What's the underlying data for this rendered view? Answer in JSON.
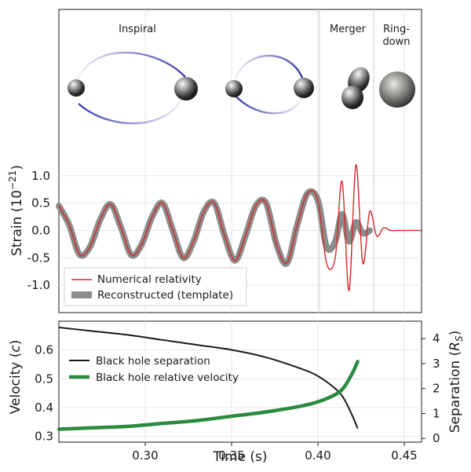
{
  "figure": {
    "phase_labels": {
      "inspiral": "Inspiral",
      "merger": "Merger",
      "ringdown_line1": "Ring-",
      "ringdown_line2": "down"
    },
    "xlabel": "Time (s)"
  },
  "colors": {
    "nr_line": "#d62728",
    "template_band": "#8c8c8c",
    "separation_line": "#1a1a1a",
    "velocity_line": "#2a8a3e",
    "orbit": "#3a3aa8",
    "grid": "#e6e6e6"
  },
  "chart_data": [
    {
      "type": "line",
      "panel": "strain",
      "ylabel": "Strain (10^-21)",
      "ylabel_main": "Strain (10",
      "ylabel_exp": "−21",
      "ylabel_close": ")",
      "xlim": [
        0.25,
        0.46
      ],
      "ylim": [
        -1.5,
        1.6
      ],
      "yticks": [
        1.0,
        0.5,
        0.0,
        -0.5,
        -1.0
      ],
      "ytick_labels": [
        "1.0",
        "0.5",
        "0.0",
        "-0.5",
        "-1.0"
      ],
      "grid": true,
      "legend_position": "lower-left",
      "series": [
        {
          "name": "Numerical relativity",
          "style": "thin-line",
          "x": [
            0.25,
            0.256,
            0.262,
            0.268,
            0.274,
            0.28,
            0.286,
            0.292,
            0.298,
            0.304,
            0.31,
            0.316,
            0.322,
            0.328,
            0.334,
            0.34,
            0.346,
            0.352,
            0.358,
            0.364,
            0.37,
            0.376,
            0.382,
            0.388,
            0.394,
            0.4,
            0.405,
            0.41,
            0.414,
            0.418,
            0.422,
            0.426,
            0.43,
            0.434,
            0.438,
            0.442,
            0.446,
            0.45,
            0.455,
            0.46
          ],
          "y": [
            0.45,
            0.1,
            -0.44,
            -0.3,
            0.2,
            0.48,
            0.05,
            -0.45,
            -0.25,
            0.25,
            0.5,
            0.0,
            -0.5,
            -0.2,
            0.35,
            0.5,
            -0.1,
            -0.55,
            -0.1,
            0.45,
            0.5,
            -0.25,
            -0.6,
            0.1,
            0.68,
            0.55,
            -0.6,
            -0.5,
            0.9,
            -1.1,
            1.2,
            -0.6,
            0.35,
            -0.1,
            0.05,
            0.0,
            0.0,
            0.0,
            0.0,
            0.0
          ]
        },
        {
          "name": "Reconstructed (template)",
          "style": "thick-band",
          "x": [
            0.25,
            0.256,
            0.262,
            0.268,
            0.274,
            0.28,
            0.286,
            0.292,
            0.298,
            0.304,
            0.31,
            0.316,
            0.322,
            0.328,
            0.334,
            0.34,
            0.346,
            0.352,
            0.358,
            0.364,
            0.37,
            0.376,
            0.382,
            0.388,
            0.394,
            0.4,
            0.405,
            0.41,
            0.414,
            0.418,
            0.422,
            0.426,
            0.43
          ],
          "y": [
            0.45,
            0.1,
            -0.44,
            -0.3,
            0.2,
            0.48,
            0.05,
            -0.45,
            -0.25,
            0.25,
            0.5,
            0.0,
            -0.5,
            -0.2,
            0.35,
            0.5,
            -0.1,
            -0.55,
            -0.1,
            0.45,
            0.5,
            -0.25,
            -0.6,
            0.1,
            0.68,
            0.55,
            -0.3,
            -0.2,
            0.3,
            -0.2,
            0.15,
            -0.05,
            0.0
          ]
        }
      ]
    },
    {
      "type": "line",
      "panel": "velocity-separation",
      "xlim": [
        0.25,
        0.46
      ],
      "xticks": [
        0.3,
        0.35,
        0.4,
        0.45
      ],
      "xtick_labels": [
        "0.30",
        "0.35",
        "0.40",
        "0.45"
      ],
      "xlabel": "Time (s)",
      "y_left": {
        "label": "Velocity (c)",
        "label_main": "Velocity (",
        "label_var": "c",
        "label_close": ")",
        "lim": [
          0.28,
          0.7
        ],
        "ticks": [
          0.3,
          0.4,
          0.5,
          0.6
        ],
        "tick_labels": [
          "0.3",
          "0.4",
          "0.5",
          "0.6"
        ]
      },
      "y_right": {
        "label": "Separation (R_S)",
        "label_main": "Separation (",
        "label_var": "R",
        "label_sub": "S",
        "label_close": ")",
        "lim": [
          -0.15,
          4.7
        ],
        "ticks": [
          0,
          1,
          2,
          3,
          4
        ],
        "tick_labels": [
          "0",
          "1",
          "2",
          "3",
          "4"
        ]
      },
      "grid": true,
      "legend_position": "center-left",
      "series": [
        {
          "name": "Black hole separation",
          "axis": "right",
          "x": [
            0.25,
            0.27,
            0.29,
            0.31,
            0.33,
            0.35,
            0.37,
            0.39,
            0.4,
            0.41,
            0.415,
            0.42,
            0.423
          ],
          "y": [
            4.45,
            4.3,
            4.15,
            3.95,
            3.75,
            3.55,
            3.25,
            2.8,
            2.5,
            2.0,
            1.6,
            0.9,
            0.4
          ]
        },
        {
          "name": "Black hole relative velocity",
          "axis": "left",
          "x": [
            0.25,
            0.27,
            0.29,
            0.31,
            0.33,
            0.35,
            0.37,
            0.39,
            0.4,
            0.41,
            0.415,
            0.42,
            0.423
          ],
          "y": [
            0.325,
            0.33,
            0.335,
            0.345,
            0.355,
            0.37,
            0.385,
            0.405,
            0.42,
            0.445,
            0.47,
            0.52,
            0.56
          ]
        }
      ]
    }
  ]
}
